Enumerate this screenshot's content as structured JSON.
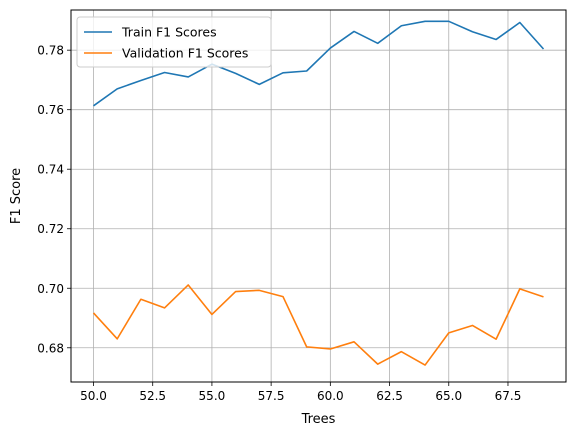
{
  "chart_data": {
    "type": "line",
    "xlabel": "Trees",
    "ylabel": "F1 Score",
    "xlim": [
      49.05,
      69.95
    ],
    "ylim": [
      0.6685,
      0.7935
    ],
    "xticks": [
      50.0,
      52.5,
      55.0,
      57.5,
      60.0,
      62.5,
      65.0,
      67.5
    ],
    "xtick_labels": [
      "50.0",
      "52.5",
      "55.0",
      "57.5",
      "60.0",
      "62.5",
      "65.0",
      "67.5"
    ],
    "yticks": [
      0.68,
      0.7,
      0.72,
      0.74,
      0.76,
      0.78
    ],
    "ytick_labels": [
      "0.68",
      "0.70",
      "0.72",
      "0.74",
      "0.76",
      "0.78"
    ],
    "grid": true,
    "legend_position": "top-left",
    "x": [
      50,
      51,
      52,
      53,
      54,
      55,
      56,
      57,
      58,
      59,
      60,
      61,
      62,
      63,
      64,
      65,
      66,
      67,
      68,
      69
    ],
    "series": [
      {
        "name": "Train F1 Scores",
        "color": "#1f77b4",
        "values": [
          0.7613,
          0.767,
          0.7698,
          0.7725,
          0.771,
          0.7753,
          0.7722,
          0.7685,
          0.7724,
          0.773,
          0.7807,
          0.7863,
          0.7823,
          0.7882,
          0.7897,
          0.7897,
          0.7862,
          0.7836,
          0.7893,
          0.7804
        ]
      },
      {
        "name": "Validation F1 Scores",
        "color": "#ff7f0e",
        "values": [
          0.6917,
          0.683,
          0.6963,
          0.6934,
          0.7011,
          0.6912,
          0.6989,
          0.6993,
          0.6972,
          0.6803,
          0.6796,
          0.682,
          0.6745,
          0.6787,
          0.6742,
          0.685,
          0.6875,
          0.6829,
          0.6998,
          0.6971
        ]
      }
    ]
  }
}
